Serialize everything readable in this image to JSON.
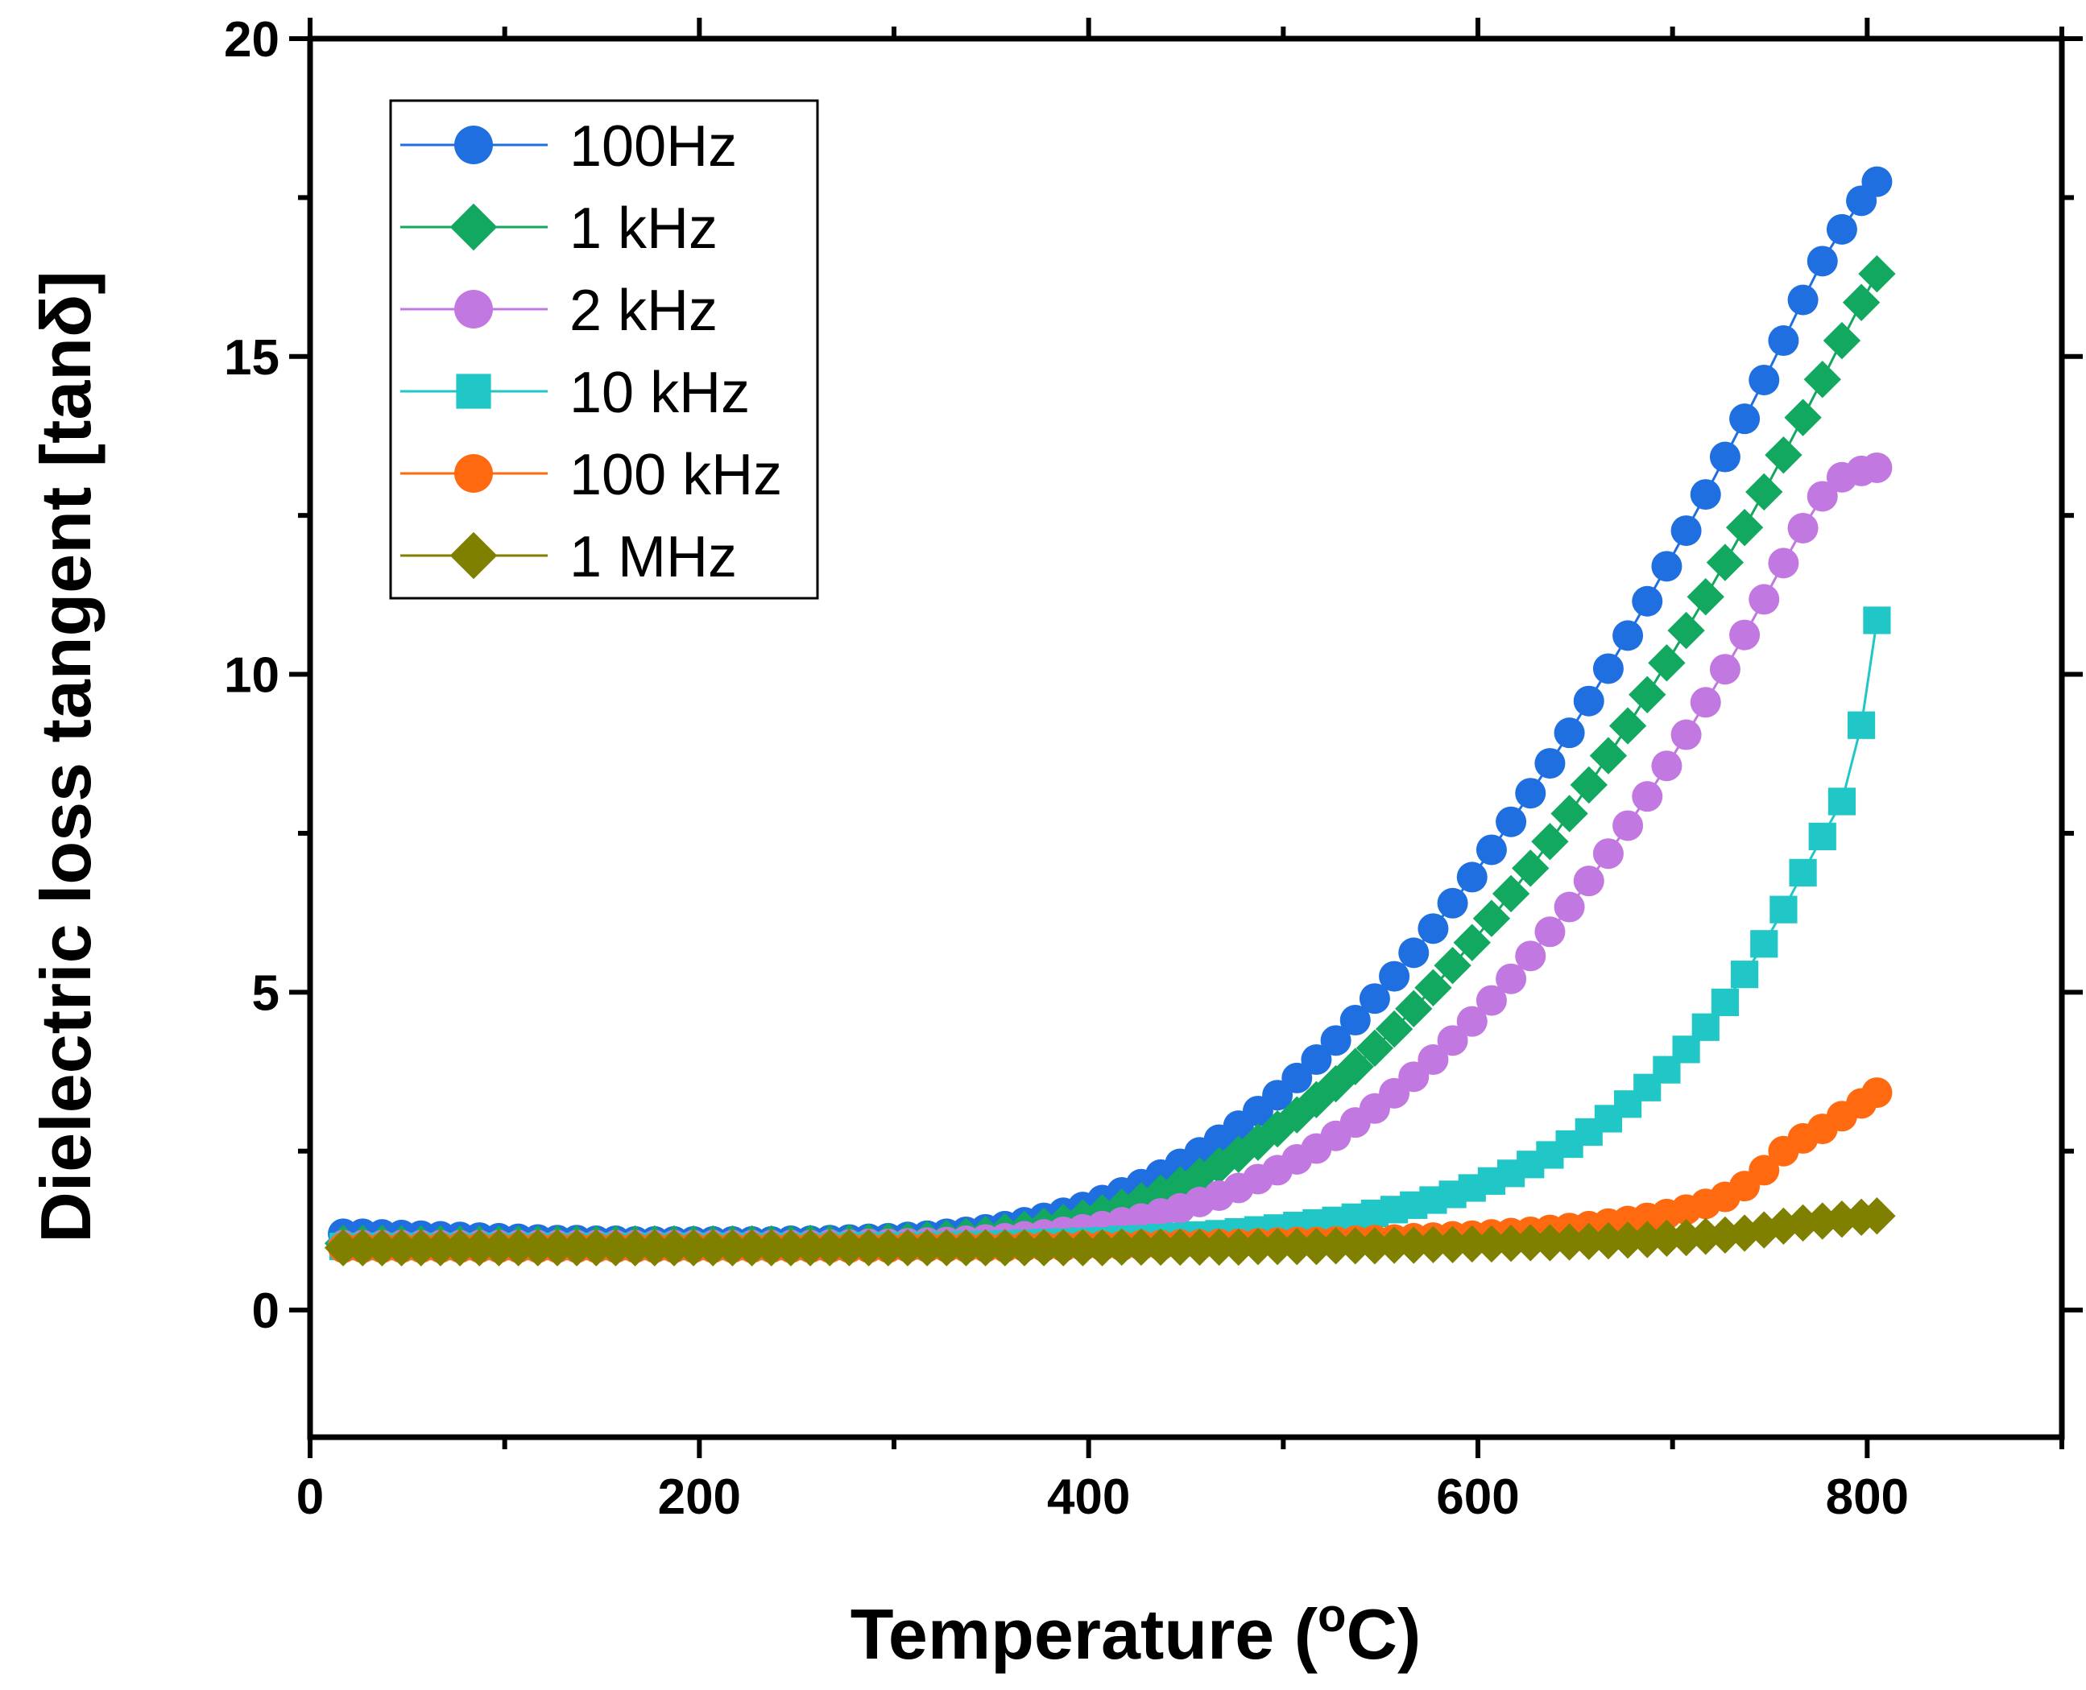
{
  "chart_data": {
    "type": "line",
    "title": "",
    "xlabel": {
      "main": "Temperature (",
      "sup": "o",
      "tail": "C)"
    },
    "ylabel": "Dielectric loss tangent [tanδ]",
    "xlim": [
      0,
      900
    ],
    "ylim": [
      -2,
      20
    ],
    "xticks": [
      0,
      200,
      400,
      600,
      800
    ],
    "xtick_labels": [
      "0",
      "200",
      "400",
      "600",
      "800"
    ],
    "yticks": [
      0,
      5,
      10,
      15,
      20
    ],
    "ytick_labels": [
      "0",
      "5",
      "10",
      "15",
      "20"
    ],
    "grid": false,
    "legend_position": "top-left",
    "x": [
      17,
      27,
      37,
      47,
      57,
      67,
      77,
      87,
      97,
      107,
      117,
      127,
      137,
      147,
      157,
      167,
      177,
      187,
      197,
      207,
      217,
      227,
      237,
      247,
      257,
      267,
      277,
      287,
      297,
      307,
      317,
      327,
      337,
      347,
      357,
      367,
      377,
      387,
      397,
      407,
      417,
      427,
      437,
      447,
      457,
      467,
      477,
      487,
      497,
      507,
      517,
      527,
      537,
      547,
      557,
      567,
      577,
      587,
      597,
      607,
      617,
      627,
      637,
      647,
      657,
      667,
      677,
      687,
      697,
      707,
      717,
      727,
      737,
      747,
      757,
      767,
      777,
      787,
      797,
      805
    ],
    "series": [
      {
        "name": "100Hz",
        "marker": "circle",
        "color": "#1f6fe0",
        "values": [
          1.2,
          1.2,
          1.19,
          1.18,
          1.17,
          1.16,
          1.15,
          1.14,
          1.13,
          1.12,
          1.11,
          1.1,
          1.1,
          1.09,
          1.09,
          1.08,
          1.08,
          1.08,
          1.08,
          1.08,
          1.08,
          1.08,
          1.08,
          1.09,
          1.09,
          1.1,
          1.11,
          1.12,
          1.13,
          1.15,
          1.17,
          1.2,
          1.23,
          1.27,
          1.32,
          1.38,
          1.45,
          1.53,
          1.62,
          1.73,
          1.85,
          1.98,
          2.13,
          2.3,
          2.48,
          2.68,
          2.9,
          3.13,
          3.38,
          3.65,
          3.94,
          4.24,
          4.56,
          4.9,
          5.25,
          5.62,
          6.0,
          6.4,
          6.81,
          7.24,
          7.68,
          8.13,
          8.6,
          9.08,
          9.58,
          10.09,
          10.61,
          11.15,
          11.7,
          12.26,
          12.83,
          13.42,
          14.02,
          14.63,
          15.25,
          15.89,
          16.5,
          17.0,
          17.45,
          17.75
        ]
      },
      {
        "name": "1 kHz",
        "marker": "diamond",
        "color": "#12a860",
        "values": [
          1.05,
          1.05,
          1.05,
          1.04,
          1.04,
          1.04,
          1.04,
          1.04,
          1.04,
          1.04,
          1.04,
          1.04,
          1.04,
          1.04,
          1.04,
          1.04,
          1.04,
          1.04,
          1.04,
          1.04,
          1.04,
          1.04,
          1.04,
          1.04,
          1.05,
          1.05,
          1.06,
          1.07,
          1.08,
          1.09,
          1.11,
          1.13,
          1.16,
          1.19,
          1.23,
          1.27,
          1.32,
          1.38,
          1.45,
          1.53,
          1.62,
          1.72,
          1.84,
          1.97,
          2.11,
          2.27,
          2.45,
          2.64,
          2.85,
          3.07,
          3.31,
          3.56,
          3.83,
          4.12,
          4.42,
          4.74,
          5.07,
          5.42,
          5.78,
          6.16,
          6.55,
          6.95,
          7.37,
          7.81,
          8.26,
          8.72,
          9.19,
          9.68,
          10.18,
          10.69,
          11.22,
          11.76,
          12.31,
          12.87,
          13.45,
          14.04,
          14.64,
          15.25,
          15.85,
          16.3
        ]
      },
      {
        "name": "2 kHz",
        "marker": "circle",
        "color": "#c178e0",
        "values": [
          1.02,
          1.02,
          1.02,
          1.02,
          1.02,
          1.02,
          1.02,
          1.02,
          1.02,
          1.02,
          1.02,
          1.02,
          1.02,
          1.02,
          1.02,
          1.02,
          1.02,
          1.02,
          1.02,
          1.02,
          1.02,
          1.02,
          1.02,
          1.02,
          1.02,
          1.03,
          1.03,
          1.04,
          1.04,
          1.05,
          1.06,
          1.07,
          1.09,
          1.11,
          1.13,
          1.16,
          1.19,
          1.23,
          1.27,
          1.32,
          1.38,
          1.44,
          1.52,
          1.6,
          1.7,
          1.8,
          1.92,
          2.06,
          2.2,
          2.37,
          2.54,
          2.74,
          2.95,
          3.17,
          3.41,
          3.67,
          3.94,
          4.24,
          4.54,
          4.87,
          5.21,
          5.57,
          5.95,
          6.34,
          6.75,
          7.18,
          7.62,
          8.08,
          8.56,
          9.05,
          9.56,
          10.08,
          10.62,
          11.18,
          11.75,
          12.3,
          12.8,
          13.1,
          13.2,
          13.25
        ]
      },
      {
        "name": "10 kHz",
        "marker": "square",
        "color": "#21c6c6",
        "values": [
          1.0,
          1.0,
          1.0,
          1.0,
          1.0,
          1.0,
          1.0,
          1.0,
          1.0,
          1.0,
          1.0,
          1.0,
          1.0,
          1.0,
          1.0,
          1.0,
          1.0,
          1.0,
          1.0,
          1.0,
          1.0,
          1.0,
          1.0,
          1.0,
          1.0,
          1.0,
          1.01,
          1.01,
          1.01,
          1.01,
          1.02,
          1.02,
          1.03,
          1.03,
          1.04,
          1.05,
          1.06,
          1.07,
          1.08,
          1.09,
          1.11,
          1.12,
          1.14,
          1.16,
          1.18,
          1.2,
          1.23,
          1.26,
          1.29,
          1.33,
          1.37,
          1.41,
          1.46,
          1.52,
          1.58,
          1.65,
          1.73,
          1.82,
          1.92,
          2.03,
          2.15,
          2.29,
          2.44,
          2.61,
          2.8,
          3.01,
          3.24,
          3.5,
          3.78,
          4.1,
          4.45,
          4.84,
          5.28,
          5.76,
          6.3,
          6.88,
          7.45,
          8.0,
          9.2,
          10.85
        ]
      },
      {
        "name": "100 kHz",
        "marker": "circle",
        "color": "#ff6a10",
        "values": [
          0.98,
          0.98,
          0.98,
          0.98,
          0.98,
          0.98,
          0.98,
          0.98,
          0.98,
          0.98,
          0.98,
          0.98,
          0.98,
          0.98,
          0.98,
          0.98,
          0.98,
          0.98,
          0.98,
          0.98,
          0.98,
          0.98,
          0.98,
          0.98,
          0.98,
          0.98,
          0.98,
          0.98,
          0.98,
          0.99,
          0.99,
          0.99,
          0.99,
          0.99,
          0.99,
          1.0,
          1.0,
          1.0,
          1.01,
          1.01,
          1.01,
          1.02,
          1.02,
          1.03,
          1.03,
          1.04,
          1.04,
          1.05,
          1.06,
          1.07,
          1.07,
          1.08,
          1.09,
          1.1,
          1.11,
          1.13,
          1.14,
          1.16,
          1.17,
          1.19,
          1.21,
          1.23,
          1.26,
          1.29,
          1.32,
          1.36,
          1.4,
          1.45,
          1.51,
          1.58,
          1.67,
          1.78,
          1.95,
          2.2,
          2.5,
          2.7,
          2.85,
          3.05,
          3.25,
          3.42
        ]
      },
      {
        "name": "1 MHz",
        "marker": "diamond",
        "color": "#808000",
        "values": [
          0.98,
          0.98,
          0.98,
          0.98,
          0.98,
          0.98,
          0.98,
          0.98,
          0.98,
          0.98,
          0.98,
          0.98,
          0.98,
          0.98,
          0.98,
          0.98,
          0.98,
          0.98,
          0.98,
          0.98,
          0.98,
          0.98,
          0.98,
          0.98,
          0.98,
          0.98,
          0.98,
          0.98,
          0.98,
          0.98,
          0.98,
          0.98,
          0.98,
          0.98,
          0.98,
          0.98,
          0.98,
          0.98,
          0.98,
          0.98,
          0.99,
          0.99,
          0.99,
          0.99,
          0.99,
          0.99,
          0.99,
          1.0,
          1.0,
          1.0,
          1.0,
          1.01,
          1.01,
          1.01,
          1.02,
          1.02,
          1.03,
          1.03,
          1.04,
          1.04,
          1.05,
          1.06,
          1.06,
          1.07,
          1.08,
          1.09,
          1.1,
          1.11,
          1.13,
          1.14,
          1.16,
          1.18,
          1.21,
          1.26,
          1.32,
          1.37,
          1.4,
          1.43,
          1.46,
          1.48
        ]
      }
    ]
  }
}
